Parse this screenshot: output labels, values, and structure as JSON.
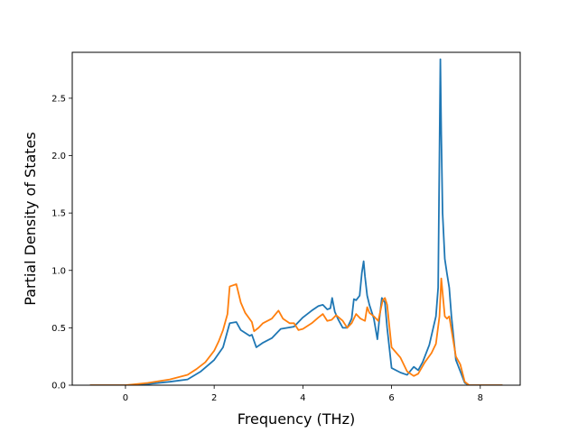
{
  "chart_data": {
    "type": "line",
    "title": "",
    "xlabel": "Frequency (THz)",
    "ylabel": "Partial Density of States",
    "xlim": [
      -1.2,
      8.9
    ],
    "ylim": [
      0,
      2.9
    ],
    "xticks": [
      0,
      2,
      4,
      6,
      8
    ],
    "xtick_labels": [
      "0",
      "2",
      "4",
      "6",
      "8"
    ],
    "yticks": [
      0,
      0.5,
      1.0,
      1.5,
      2.0,
      2.5
    ],
    "ytick_labels": [
      "0.0",
      "0.5",
      "1.0",
      "1.5",
      "2.0",
      "2.5"
    ],
    "grid": false,
    "legend": "none",
    "series": [
      {
        "color": "#1f77b4",
        "x": [
          -0.8,
          0.0,
          0.5,
          1.0,
          1.4,
          1.7,
          2.0,
          2.2,
          2.35,
          2.5,
          2.6,
          2.8,
          2.85,
          2.95,
          3.1,
          3.3,
          3.5,
          3.8,
          4.0,
          4.2,
          4.35,
          4.45,
          4.55,
          4.62,
          4.66,
          4.72,
          4.8,
          4.9,
          5.0,
          5.1,
          5.15,
          5.2,
          5.28,
          5.33,
          5.37,
          5.4,
          5.45,
          5.5,
          5.6,
          5.68,
          5.72,
          5.78,
          5.85,
          5.9,
          6.0,
          6.2,
          6.35,
          6.5,
          6.6,
          6.7,
          6.85,
          7.0,
          7.05,
          7.1,
          7.12,
          7.15,
          7.2,
          7.25,
          7.3,
          7.35,
          7.45,
          7.55,
          7.65,
          7.75,
          8.0,
          8.5
        ],
        "y": [
          0.0,
          0.0,
          0.01,
          0.03,
          0.05,
          0.12,
          0.22,
          0.33,
          0.54,
          0.55,
          0.48,
          0.43,
          0.44,
          0.33,
          0.37,
          0.41,
          0.49,
          0.51,
          0.59,
          0.65,
          0.69,
          0.7,
          0.66,
          0.67,
          0.76,
          0.64,
          0.57,
          0.5,
          0.5,
          0.58,
          0.75,
          0.74,
          0.78,
          0.98,
          1.08,
          0.95,
          0.78,
          0.7,
          0.58,
          0.4,
          0.56,
          0.76,
          0.72,
          0.5,
          0.15,
          0.11,
          0.09,
          0.16,
          0.13,
          0.2,
          0.35,
          0.6,
          0.85,
          2.84,
          2.2,
          1.5,
          1.1,
          0.97,
          0.85,
          0.6,
          0.22,
          0.12,
          0.02,
          0.0,
          0.0,
          0.0
        ]
      },
      {
        "color": "#ff7f0e",
        "x": [
          -0.8,
          0.0,
          0.5,
          1.0,
          1.4,
          1.6,
          1.8,
          2.0,
          2.1,
          2.2,
          2.3,
          2.35,
          2.5,
          2.6,
          2.7,
          2.85,
          2.9,
          3.0,
          3.1,
          3.3,
          3.45,
          3.55,
          3.7,
          3.8,
          3.9,
          4.0,
          4.2,
          4.35,
          4.45,
          4.55,
          4.65,
          4.75,
          4.9,
          5.0,
          5.1,
          5.2,
          5.3,
          5.4,
          5.45,
          5.5,
          5.6,
          5.7,
          5.8,
          5.85,
          5.9,
          6.0,
          6.2,
          6.35,
          6.5,
          6.6,
          6.75,
          6.9,
          7.0,
          7.08,
          7.12,
          7.2,
          7.25,
          7.3,
          7.45,
          7.55,
          7.65,
          7.75,
          8.0,
          8.5
        ],
        "y": [
          0.0,
          0.0,
          0.02,
          0.05,
          0.09,
          0.14,
          0.2,
          0.3,
          0.38,
          0.48,
          0.62,
          0.86,
          0.88,
          0.72,
          0.63,
          0.55,
          0.47,
          0.5,
          0.54,
          0.58,
          0.65,
          0.58,
          0.54,
          0.54,
          0.48,
          0.49,
          0.54,
          0.59,
          0.62,
          0.56,
          0.57,
          0.61,
          0.56,
          0.5,
          0.54,
          0.62,
          0.58,
          0.56,
          0.68,
          0.63,
          0.6,
          0.56,
          0.74,
          0.76,
          0.7,
          0.33,
          0.24,
          0.12,
          0.08,
          0.1,
          0.2,
          0.28,
          0.36,
          0.6,
          0.93,
          0.6,
          0.58,
          0.6,
          0.25,
          0.18,
          0.03,
          0.0,
          0.0,
          0.0
        ]
      }
    ]
  }
}
